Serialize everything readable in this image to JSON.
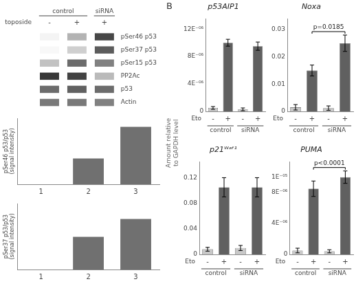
{
  "chart_data": [
    {
      "type": "heatmap",
      "rows": [
        "pSer46 p53",
        "pSer37 p53",
        "pSer15 p53",
        "PP2Ac",
        "p53",
        "Actin"
      ],
      "categories": [
        "-",
        "+",
        "+"
      ],
      "category_groups": [
        "control",
        "control",
        "siRNA"
      ],
      "x_label": "toposide",
      "cells": [
        [
          0.05,
          0.35,
          0.85
        ],
        [
          0.03,
          0.22,
          0.75
        ],
        [
          0.28,
          0.68,
          0.58
        ],
        [
          0.92,
          0.87,
          0.32
        ],
        [
          0.68,
          0.73,
          0.68
        ],
        [
          0.62,
          0.62,
          0.58
        ]
      ],
      "grid": false
    },
    {
      "type": "bar",
      "categories": [
        "1",
        "2",
        "3"
      ],
      "values": [
        0,
        0.45,
        1.0
      ],
      "color": "#707070",
      "y_label": "pSer46 p53/p53\n(signal intensity)",
      "ylim": [
        0,
        1.15
      ],
      "yticks": [],
      "tick_labels": "x",
      "grid": false
    },
    {
      "type": "bar",
      "categories": [
        "1",
        "2",
        "3"
      ],
      "values": [
        0,
        0.42,
        0.65
      ],
      "color": "#707070",
      "y_label": "pSer37 p53/p53\n(signal intensity)",
      "ylim": [
        0,
        0.85
      ],
      "yticks": [],
      "tick_labels": "x",
      "grid": false
    },
    {
      "type": "bar",
      "title": "p53AIP1",
      "categories": [
        "-",
        "+",
        "-",
        "+"
      ],
      "category_groups": [
        "control",
        "control",
        "siRNA",
        "siRNA"
      ],
      "x_label": "Eto",
      "values": [
        0.5,
        10.0,
        0.3,
        9.5
      ],
      "errors": [
        0.2,
        0.5,
        0.2,
        0.6
      ],
      "colors": [
        "#c8c8c8",
        "#606060",
        "#c8c8c8",
        "#606060"
      ],
      "ylim": [
        0,
        13.5
      ],
      "yticks": [
        0,
        {
          "value": 4,
          "label": "4E⁻⁰⁶"
        },
        {
          "value": 8,
          "label": "8E⁻⁰⁶"
        },
        {
          "value": 12,
          "label": "12E⁻⁰⁶"
        }
      ],
      "y_label": "Amount relative\nto GAPDH level",
      "annotations": [
        {
          "text": "B"
        }
      ],
      "grid": false
    },
    {
      "type": "bar",
      "title": "Noxa",
      "categories": [
        "-",
        "+",
        "-",
        "+"
      ],
      "category_groups": [
        "control",
        "control",
        "siRNA",
        "siRNA"
      ],
      "x_label": "Eto",
      "values": [
        0.0015,
        0.015,
        0.0012,
        0.025
      ],
      "errors": [
        0.001,
        0.002,
        0.0008,
        0.003
      ],
      "colors": [
        "#c8c8c8",
        "#606060",
        "#c8c8c8",
        "#606060"
      ],
      "ylim": [
        0,
        0.034
      ],
      "yticks": [
        0,
        0.01,
        0.02,
        0.03
      ],
      "p_value": {
        "text": "p=0.0185",
        "bars": [
          1,
          3
        ]
      },
      "grid": false
    },
    {
      "type": "bar",
      "title": "p21ᵂᵃᶠ¹",
      "categories": [
        "-",
        "+",
        "-",
        "+"
      ],
      "category_groups": [
        "control",
        "control",
        "siRNA",
        "siRNA"
      ],
      "x_label": "Eto",
      "values": [
        0.008,
        0.105,
        0.01,
        0.105
      ],
      "errors": [
        0.003,
        0.015,
        0.004,
        0.015
      ],
      "colors": [
        "#c8c8c8",
        "#606060",
        "#c8c8c8",
        "#606060"
      ],
      "ylim": [
        0,
        0.145
      ],
      "yticks": [
        0,
        0.04,
        0.08,
        0.12
      ],
      "grid": false
    },
    {
      "type": "bar",
      "title": "PUMA",
      "categories": [
        "-",
        "+",
        "-",
        "+"
      ],
      "category_groups": [
        "control",
        "control",
        "siRNA",
        "siRNA"
      ],
      "x_label": "Eto",
      "values": [
        0.5,
        8.5,
        0.4,
        10.0
      ],
      "errors": [
        0.3,
        1.0,
        0.2,
        0.8
      ],
      "colors": [
        "#c8c8c8",
        "#606060",
        "#c8c8c8",
        "#606060"
      ],
      "ylim": [
        0,
        12
      ],
      "yticks": [
        0,
        {
          "value": 4,
          "label": "4E⁻⁰⁶"
        },
        {
          "value": 8,
          "label": "8E⁻⁰⁶"
        },
        {
          "value": 10,
          "label": "1E⁻⁰⁵"
        }
      ],
      "p_value": {
        "text": "p<0.0001",
        "bars": [
          1,
          3
        ]
      },
      "grid": false
    }
  ]
}
